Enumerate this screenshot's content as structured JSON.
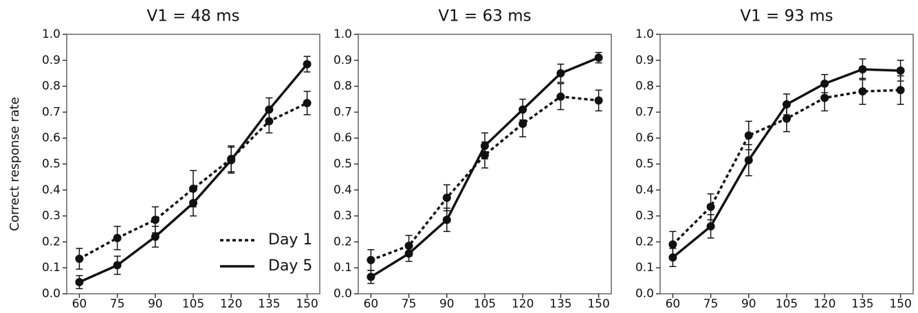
{
  "chart_data": [
    {
      "type": "line",
      "title": "V1 = 48 ms",
      "y_label": "Correct response rate",
      "x": [
        60,
        75,
        90,
        105,
        120,
        135,
        150
      ],
      "xlim": [
        55,
        155
      ],
      "xticks": [
        60,
        75,
        90,
        105,
        120,
        135,
        150
      ],
      "ylim": [
        0,
        1
      ],
      "yticks": [
        {
          "value": 0,
          "label": "0.0"
        },
        0.1,
        0.2,
        0.3,
        0.4,
        0.5,
        0.6,
        0.7,
        0.8,
        0.9,
        {
          "value": 1,
          "label": "1.0"
        }
      ],
      "legend": "lower right",
      "series": [
        {
          "name": "Day 1",
          "color": "#111111",
          "dash": "dotted",
          "values": [
            0.135,
            0.215,
            0.285,
            0.405,
            0.52,
            0.665,
            0.735
          ],
          "errors": [
            0.04,
            0.045,
            0.05,
            0.07,
            0.05,
            0.045,
            0.045
          ]
        },
        {
          "name": "Day 5",
          "color": "#111111",
          "dash": "solid",
          "values": [
            0.045,
            0.11,
            0.22,
            0.35,
            0.515,
            0.71,
            0.885
          ],
          "errors": [
            0.025,
            0.035,
            0.04,
            0.05,
            0.05,
            0.045,
            0.03
          ]
        }
      ]
    },
    {
      "type": "line",
      "title": "V1 = 63 ms",
      "x": [
        60,
        75,
        90,
        105,
        120,
        135,
        150
      ],
      "xlim": [
        55,
        155
      ],
      "xticks": [
        60,
        75,
        90,
        105,
        120,
        135,
        150
      ],
      "ylim": [
        0,
        1
      ],
      "yticks": [
        {
          "value": 0,
          "label": "0.0"
        },
        0.1,
        0.2,
        0.3,
        0.4,
        0.5,
        0.6,
        0.7,
        0.8,
        0.9,
        {
          "value": 1,
          "label": "1.0"
        }
      ],
      "series": [
        {
          "color": "#111111",
          "dash": "dotted",
          "values": [
            0.13,
            0.185,
            0.37,
            0.535,
            0.655,
            0.76,
            0.745
          ],
          "errors": [
            0.04,
            0.04,
            0.05,
            0.05,
            0.05,
            0.05,
            0.04
          ]
        },
        {
          "color": "#111111",
          "dash": "solid",
          "values": [
            0.065,
            0.155,
            0.285,
            0.57,
            0.71,
            0.85,
            0.91
          ],
          "errors": [
            0.025,
            0.03,
            0.045,
            0.05,
            0.04,
            0.035,
            0.02
          ]
        }
      ]
    },
    {
      "type": "line",
      "title": "V1 = 93 ms",
      "x": [
        60,
        75,
        90,
        105,
        120,
        135,
        150
      ],
      "xlim": [
        55,
        155
      ],
      "xticks": [
        60,
        75,
        90,
        105,
        120,
        135,
        150
      ],
      "ylim": [
        0,
        1
      ],
      "yticks": [
        {
          "value": 0,
          "label": "0.0"
        },
        0.1,
        0.2,
        0.3,
        0.4,
        0.5,
        0.6,
        0.7,
        0.8,
        0.9,
        {
          "value": 1,
          "label": "1.0"
        }
      ],
      "series": [
        {
          "color": "#111111",
          "dash": "dotted",
          "values": [
            0.19,
            0.335,
            0.61,
            0.675,
            0.755,
            0.78,
            0.785
          ],
          "errors": [
            0.05,
            0.05,
            0.055,
            0.05,
            0.05,
            0.05,
            0.055
          ]
        },
        {
          "color": "#111111",
          "dash": "solid",
          "values": [
            0.14,
            0.26,
            0.515,
            0.73,
            0.81,
            0.865,
            0.86
          ],
          "errors": [
            0.035,
            0.045,
            0.06,
            0.04,
            0.035,
            0.04,
            0.04
          ]
        }
      ]
    }
  ]
}
